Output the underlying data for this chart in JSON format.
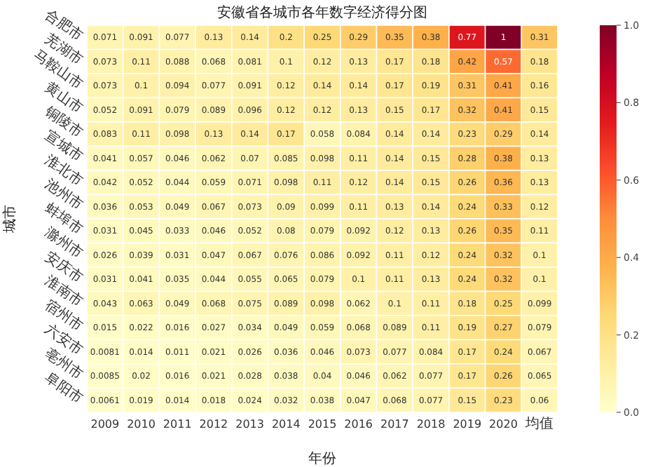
{
  "chart_data": {
    "type": "heatmap",
    "title": "安徽省各城市各年数字经济得分图",
    "xlabel": "年份",
    "ylabel": "城市",
    "categories": [
      "2009",
      "2010",
      "2011",
      "2012",
      "2013",
      "2014",
      "2015",
      "2016",
      "2017",
      "2018",
      "2019",
      "2020",
      "均值"
    ],
    "y_categories": [
      "合肥市",
      "芜湖市",
      "马鞍山市",
      "黄山市",
      "铜陵市",
      "宣城市",
      "淮北市",
      "池州市",
      "蚌埠市",
      "滁州市",
      "安庆市",
      "淮南市",
      "宿州市",
      "六安市",
      "亳州市",
      "阜阳市"
    ],
    "cells": [
      [
        0.071,
        0.091,
        0.077,
        0.13,
        0.14,
        0.2,
        0.25,
        0.29,
        0.35,
        0.38,
        0.77,
        1,
        0.31
      ],
      [
        0.073,
        0.11,
        0.088,
        0.068,
        0.081,
        0.1,
        0.12,
        0.13,
        0.17,
        0.18,
        0.42,
        0.57,
        0.18
      ],
      [
        0.073,
        0.1,
        0.094,
        0.077,
        0.091,
        0.12,
        0.14,
        0.14,
        0.17,
        0.19,
        0.31,
        0.41,
        0.16
      ],
      [
        0.052,
        0.091,
        0.079,
        0.089,
        0.096,
        0.12,
        0.12,
        0.13,
        0.15,
        0.17,
        0.32,
        0.41,
        0.15
      ],
      [
        0.083,
        0.11,
        0.098,
        0.13,
        0.14,
        0.17,
        0.058,
        0.084,
        0.14,
        0.14,
        0.23,
        0.29,
        0.14
      ],
      [
        0.041,
        0.057,
        0.046,
        0.062,
        0.07,
        0.085,
        0.098,
        0.11,
        0.14,
        0.15,
        0.28,
        0.38,
        0.13
      ],
      [
        0.042,
        0.052,
        0.044,
        0.059,
        0.071,
        0.098,
        0.11,
        0.12,
        0.14,
        0.15,
        0.26,
        0.36,
        0.13
      ],
      [
        0.036,
        0.053,
        0.049,
        0.067,
        0.073,
        0.09,
        0.099,
        0.11,
        0.13,
        0.14,
        0.24,
        0.33,
        0.12
      ],
      [
        0.031,
        0.045,
        0.033,
        0.046,
        0.052,
        0.08,
        0.079,
        0.092,
        0.12,
        0.13,
        0.26,
        0.35,
        0.11
      ],
      [
        0.026,
        0.039,
        0.031,
        0.047,
        0.067,
        0.076,
        0.086,
        0.092,
        0.11,
        0.12,
        0.24,
        0.32,
        0.1
      ],
      [
        0.031,
        0.041,
        0.035,
        0.044,
        0.055,
        0.065,
        0.079,
        0.1,
        0.11,
        0.13,
        0.24,
        0.32,
        0.1
      ],
      [
        0.043,
        0.063,
        0.049,
        0.068,
        0.075,
        0.089,
        0.098,
        0.062,
        0.1,
        0.11,
        0.18,
        0.25,
        0.099
      ],
      [
        0.015,
        0.022,
        0.016,
        0.027,
        0.034,
        0.049,
        0.059,
        0.068,
        0.089,
        0.11,
        0.19,
        0.27,
        0.079
      ],
      [
        0.0081,
        0.014,
        0.011,
        0.021,
        0.026,
        0.036,
        0.046,
        0.073,
        0.077,
        0.084,
        0.17,
        0.24,
        0.067
      ],
      [
        0.0085,
        0.02,
        0.016,
        0.021,
        0.028,
        0.038,
        0.04,
        0.046,
        0.062,
        0.077,
        0.17,
        0.26,
        0.065
      ],
      [
        0.0061,
        0.019,
        0.014,
        0.018,
        0.024,
        0.032,
        0.038,
        0.047,
        0.068,
        0.077,
        0.15,
        0.23,
        0.06
      ]
    ],
    "clim": [
      0,
      1
    ],
    "cticks": [
      {
        "value": 0,
        "label": "0.0"
      },
      {
        "value": 0.2,
        "label": "0.2"
      },
      {
        "value": 0.4,
        "label": "0.4"
      },
      {
        "value": 0.6,
        "label": "0.6"
      },
      {
        "value": 0.8,
        "label": "0.8"
      },
      {
        "value": 1,
        "label": "1.0"
      }
    ],
    "data_labels": true
  }
}
